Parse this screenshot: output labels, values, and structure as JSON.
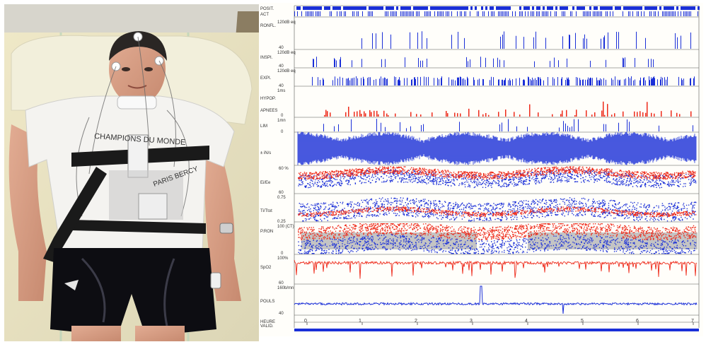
{
  "photo": {
    "shirt_text_1": "CHAMPIONS DU MONDE",
    "shirt_text_2": "PARIS BERCY"
  },
  "polysomnography": {
    "channels": [
      {
        "key": "posit",
        "label": "POSIT."
      },
      {
        "key": "act",
        "label": "ACT"
      },
      {
        "key": "ronfl",
        "label": "RONFL."
      },
      {
        "key": "inspi",
        "label": "INSPI."
      },
      {
        "key": "expi",
        "label": "EXPI."
      },
      {
        "key": "hypop",
        "label": "HYPOP."
      },
      {
        "key": "apnees",
        "label": "APNEES"
      },
      {
        "key": "lim",
        "label": "LIM"
      },
      {
        "key": "pw",
        "label": "± iN/s"
      },
      {
        "key": "eiee",
        "label": "Ei/Ee"
      },
      {
        "key": "titot",
        "label": "Ti/Ttot"
      },
      {
        "key": "pron",
        "label": "P.RON"
      },
      {
        "key": "spo2",
        "label": "SpO2"
      },
      {
        "key": "pouls",
        "label": "POULS"
      },
      {
        "key": "heure",
        "label": "HEURE"
      },
      {
        "key": "valid",
        "label": "VALID."
      }
    ],
    "scale_labels": {
      "ronfl_top": "120dB eq",
      "ronfl_bot": "40",
      "inspi_top": "120dB eq",
      "inspi_bot": "40",
      "expi_top": "120dB eq",
      "expi_bot": "40",
      "hypop_top": "1ms",
      "apnees_bot": "0",
      "lim_top": "1mn",
      "lim_mid": "0",
      "eiee_top": "60 %",
      "eiee_bot": "60",
      "titot_top": "0.75",
      "titot_bot": "0.25",
      "pron_top": "100 (CT)",
      "pron_bot": "0",
      "spo2_top": "100%",
      "spo2_bot": "60",
      "pouls_top": "160b/mn",
      "pouls_bot": "40"
    },
    "hours": [
      "0",
      "1",
      "2",
      "3",
      "4",
      "5",
      "6",
      "7"
    ],
    "colors": {
      "blue": "#1a2fd8",
      "red": "#ee2a1a",
      "gray": "#c4c4c4"
    }
  }
}
